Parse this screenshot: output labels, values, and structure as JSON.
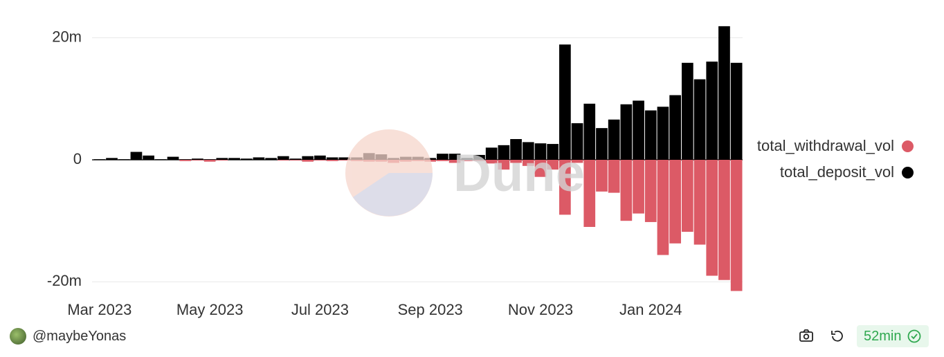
{
  "chart_data": {
    "type": "bar",
    "stacked": true,
    "categories": [
      "Mar 2023",
      null,
      null,
      null,
      null,
      null,
      null,
      null,
      null,
      "May 2023",
      null,
      null,
      null,
      null,
      null,
      null,
      null,
      null,
      "Jul 2023",
      null,
      null,
      null,
      null,
      null,
      null,
      null,
      null,
      "Sep 2023",
      null,
      null,
      null,
      null,
      null,
      null,
      null,
      null,
      "Nov 2023",
      null,
      null,
      null,
      null,
      null,
      null,
      null,
      null,
      "Jan 2024",
      null,
      null,
      null,
      null,
      null,
      null,
      null
    ],
    "series": [
      {
        "name": "total_withdrawal_vol",
        "color": "#dc5a66",
        "values": [
          0,
          0,
          0,
          0,
          0,
          0,
          0,
          -0.2,
          -0.1,
          -0.3,
          -0.1,
          0,
          0,
          0,
          0,
          -0.1,
          -0.1,
          -0.3,
          -0.1,
          -0.2,
          -0.1,
          -0.2,
          -0.3,
          -0.3,
          -0.5,
          -0.3,
          -0.2,
          -0.3,
          -0.2,
          -0.5,
          -0.2,
          -0.2,
          -0.6,
          -1.6,
          -0.5,
          -1.0,
          -2.8,
          -1.6,
          -9.0,
          -0.5,
          -11.0,
          -5.2,
          -5.4,
          -10.0,
          -8.8,
          -10.2,
          -15.6,
          -13.7,
          -11.8,
          -13.9,
          -19.0,
          -19.7,
          -21.5
        ]
      },
      {
        "name": "total_deposit_vol",
        "color": "#000000",
        "values": [
          0.1,
          0.3,
          0.1,
          1.3,
          0.7,
          0.1,
          0.5,
          0.1,
          0.2,
          0.1,
          0.3,
          0.3,
          0.2,
          0.4,
          0.3,
          0.6,
          0.2,
          0.6,
          0.7,
          0.4,
          0.4,
          0.4,
          1.1,
          0.9,
          0.3,
          0.5,
          0.5,
          0.3,
          1.0,
          1.0,
          0.3,
          0.8,
          2.0,
          2.4,
          3.4,
          2.9,
          2.7,
          2.6,
          18.9,
          6.0,
          9.2,
          5.2,
          6.6,
          9.1,
          9.7,
          8.1,
          8.7,
          10.6,
          15.9,
          13.2,
          16.1,
          21.9,
          15.9
        ]
      }
    ],
    "ylim": [
      -22,
      22
    ],
    "yticks": [
      {
        "value": 20,
        "label": "20m"
      },
      0,
      {
        "value": -20,
        "label": "-20m"
      }
    ],
    "grid": true,
    "legend": "right"
  },
  "watermark": "Dune",
  "footer": {
    "author": "@maybeYonas",
    "age": "52min"
  }
}
